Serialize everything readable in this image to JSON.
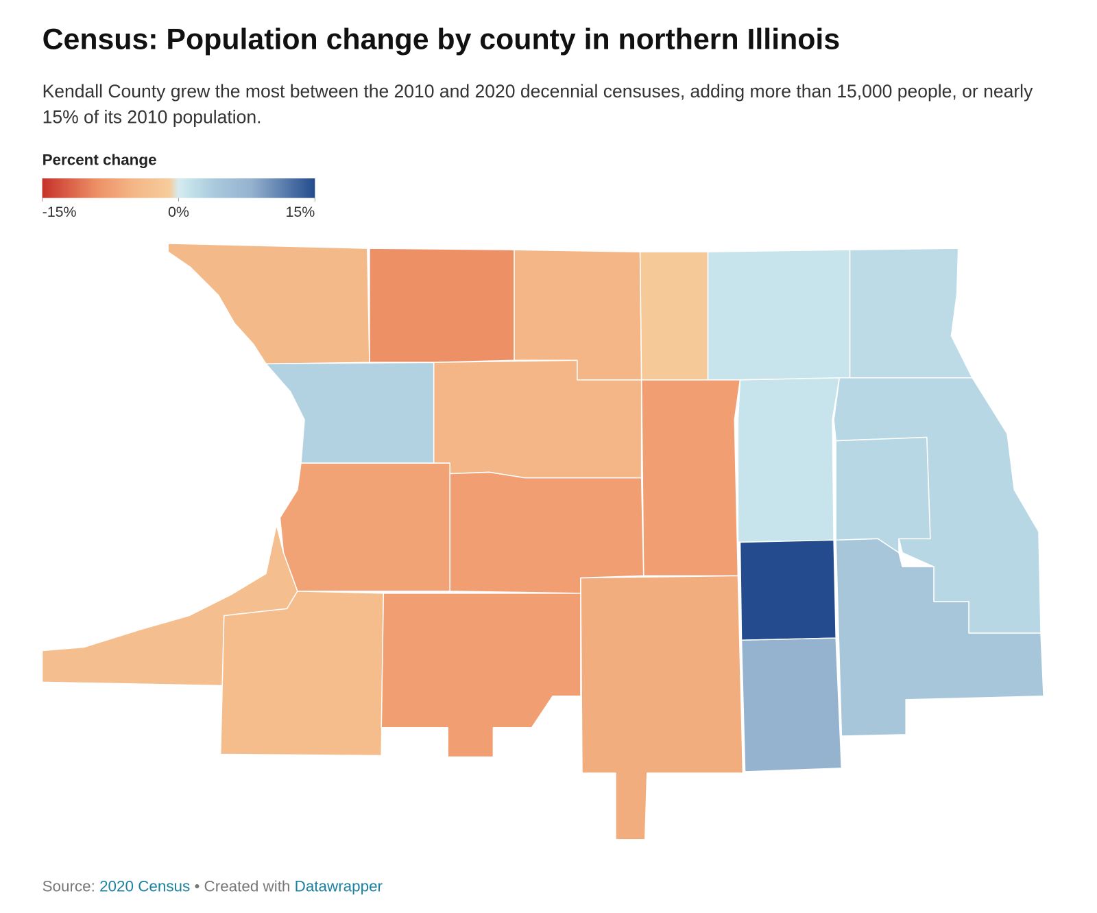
{
  "title": "Census: Population change by county in northern Illinois",
  "subtitle": "Kendall County grew the most between the 2010 and 2020 decennial censuses, adding more than 15,000 people, or nearly 15% of its 2010 population.",
  "legend": {
    "title": "Percent change",
    "range": [
      -15,
      15
    ],
    "ticks": [
      {
        "value": -15,
        "label": "-15%"
      },
      {
        "value": 0,
        "label": "0%"
      },
      {
        "value": 15,
        "label": "15%"
      }
    ],
    "stops": [
      {
        "value": -15,
        "color": "#c7312a"
      },
      {
        "value": -9,
        "color": "#ed9066"
      },
      {
        "value": -5,
        "color": "#f4b686"
      },
      {
        "value": -1,
        "color": "#f6cc9c"
      },
      {
        "value": 0,
        "color": "#d6ebf0"
      },
      {
        "value": 1,
        "color": "#c7e4ec"
      },
      {
        "value": 4,
        "color": "#a9c9dc"
      },
      {
        "value": 8,
        "color": "#95b2cf"
      },
      {
        "value": 15,
        "color": "#234b8d"
      }
    ]
  },
  "regions": [
    {
      "value": -4.5
    },
    {
      "value": -9
    },
    {
      "value": -5
    },
    {
      "value": -1.5
    },
    {
      "value": 1
    },
    {
      "value": 2
    },
    {
      "value": 3
    },
    {
      "value": -5
    },
    {
      "value": -7.5
    },
    {
      "value": 1
    },
    {
      "value": 2.5
    },
    {
      "value": 2.5
    },
    {
      "value": -7
    },
    {
      "value": -7.5
    },
    {
      "value": -3.5
    },
    {
      "value": -4
    },
    {
      "value": -7.5
    },
    {
      "value": -6
    },
    {
      "value": 15
    },
    {
      "value": 8
    },
    {
      "value": 4.5
    }
  ],
  "footer": {
    "source_label": "Source: ",
    "source_link": "2020 Census",
    "separator": " • Created with ",
    "tool_link": "Datawrapper"
  }
}
